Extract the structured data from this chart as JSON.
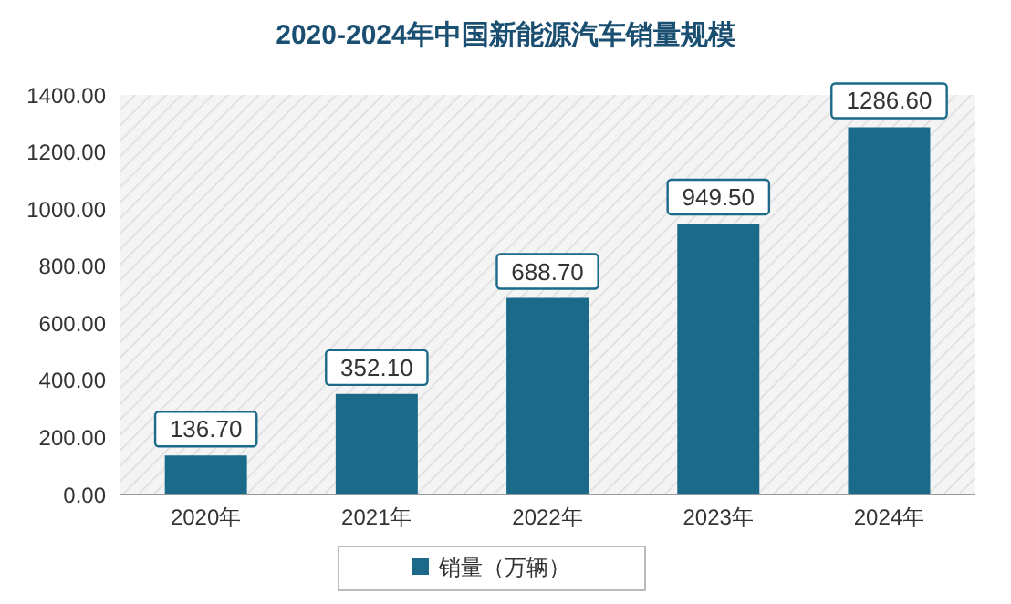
{
  "chart_data": {
    "type": "bar",
    "title": "2020-2024年中国新能源汽车销量规模",
    "categories": [
      "2020年",
      "2021年",
      "2022年",
      "2023年",
      "2024年"
    ],
    "series": [
      {
        "name": "销量（万辆）",
        "color": "#1b6a8a",
        "values": [
          136.7,
          352.1,
          688.7,
          949.5,
          1286.6
        ],
        "value_labels": [
          "136.70",
          "352.10",
          "688.70",
          "949.50",
          "1286.60"
        ]
      }
    ],
    "ylim": [
      0,
      1400
    ],
    "yticks": [
      {
        "value": 0,
        "label": "0.00"
      },
      {
        "value": 200,
        "label": "200.00"
      },
      {
        "value": 400,
        "label": "400.00"
      },
      {
        "value": 600,
        "label": "600.00"
      },
      {
        "value": 800,
        "label": "800.00"
      },
      {
        "value": 1000,
        "label": "1000.00"
      },
      {
        "value": 1200,
        "label": "1200.00"
      },
      {
        "value": 1400,
        "label": "1400.00"
      }
    ],
    "legend": "bottom"
  }
}
